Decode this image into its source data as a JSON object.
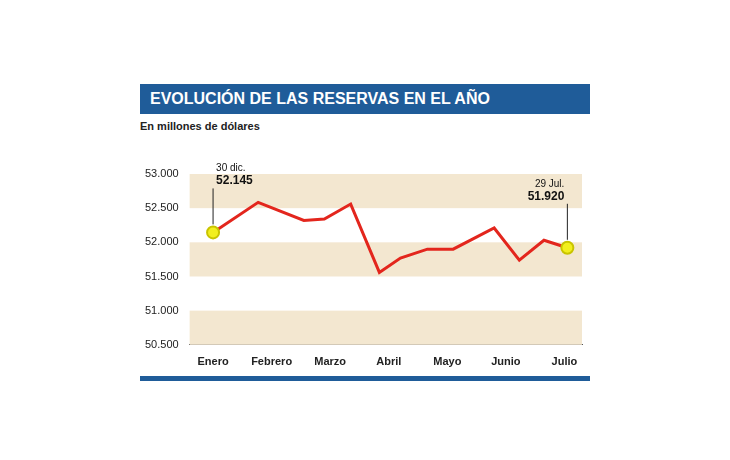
{
  "chart_data": {
    "type": "line",
    "title": "EVOLUCIÓN DE LAS RESERVAS EN EL AÑO",
    "subtitle": "En millones de dólares",
    "x": [
      0,
      0.77,
      1.55,
      1.9,
      2.35,
      2.84,
      3.2,
      3.66,
      4.1,
      4.8,
      5.23,
      5.65,
      6.05
    ],
    "values": [
      52145,
      52585,
      52320,
      52340,
      52560,
      51560,
      51770,
      51900,
      51900,
      52210,
      51740,
      52030,
      51920
    ],
    "color": "#e3261d",
    "xlim": [
      -0.4,
      6.3
    ],
    "xticks": [
      {
        "value": 0,
        "label": "Enero"
      },
      {
        "value": 1,
        "label": "Febrero"
      },
      {
        "value": 2,
        "label": "Marzo"
      },
      {
        "value": 3,
        "label": "Abril"
      },
      {
        "value": 4,
        "label": "Mayo"
      },
      {
        "value": 5,
        "label": "Junio"
      },
      {
        "value": 6,
        "label": "Julio"
      }
    ],
    "ylim": [
      50500,
      53000
    ],
    "yticks": [
      {
        "value": 50500,
        "label": "50.500"
      },
      {
        "value": 51000,
        "label": "51.000"
      },
      {
        "value": 51500,
        "label": "51.500"
      },
      {
        "value": 52000,
        "label": "52.000"
      },
      {
        "value": 52500,
        "label": "52.500"
      },
      {
        "value": 53000,
        "label": "53.000"
      }
    ],
    "grid": true,
    "annotations": [
      {
        "x": 0,
        "y": 52145,
        "text": [
          "30 dic.",
          "52.145"
        ]
      },
      {
        "x": 6.05,
        "y": 51920,
        "text": [
          "29 Jul.",
          "51.920"
        ]
      }
    ]
  }
}
